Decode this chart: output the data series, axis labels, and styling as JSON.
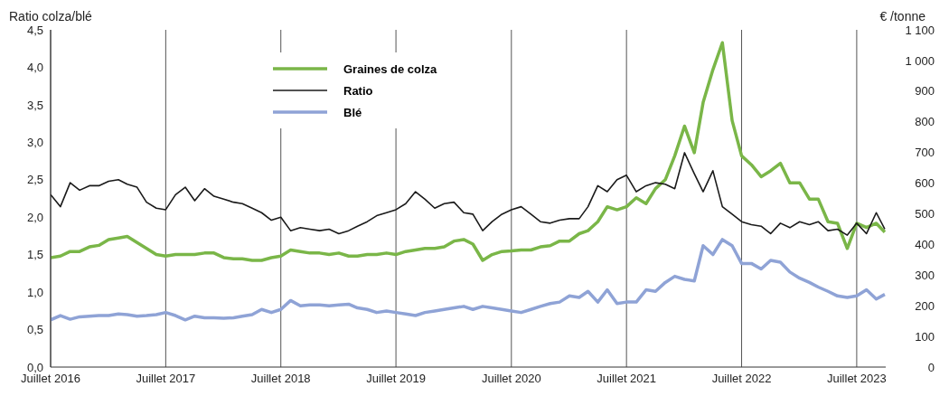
{
  "chart_data": {
    "type": "line",
    "ylabel": "Ratio colza/blé",
    "y2label": "€ /tonne",
    "x": [
      "2016-07",
      "2016-08",
      "2016-09",
      "2016-10",
      "2016-11",
      "2016-12",
      "2017-01",
      "2017-02",
      "2017-03",
      "2017-04",
      "2017-05",
      "2017-06",
      "2017-07",
      "2017-08",
      "2017-09",
      "2017-10",
      "2017-11",
      "2017-12",
      "2018-01",
      "2018-02",
      "2018-03",
      "2018-04",
      "2018-05",
      "2018-06",
      "2018-07",
      "2018-08",
      "2018-09",
      "2018-10",
      "2018-11",
      "2018-12",
      "2019-01",
      "2019-02",
      "2019-03",
      "2019-04",
      "2019-05",
      "2019-06",
      "2019-07",
      "2019-08",
      "2019-09",
      "2019-10",
      "2019-11",
      "2019-12",
      "2020-01",
      "2020-02",
      "2020-03",
      "2020-04",
      "2020-05",
      "2020-06",
      "2020-07",
      "2020-08",
      "2020-09",
      "2020-10",
      "2020-11",
      "2020-12",
      "2021-01",
      "2021-02",
      "2021-03",
      "2021-04",
      "2021-05",
      "2021-06",
      "2021-07",
      "2021-08",
      "2021-09",
      "2021-10",
      "2021-11",
      "2021-12",
      "2022-01",
      "2022-02",
      "2022-03",
      "2022-04",
      "2022-05",
      "2022-06",
      "2022-07",
      "2022-08",
      "2022-09",
      "2022-10",
      "2022-11",
      "2022-12",
      "2023-01",
      "2023-02",
      "2023-03",
      "2023-04",
      "2023-05",
      "2023-06",
      "2023-07",
      "2023-08",
      "2023-09",
      "2023-09-28"
    ],
    "series": [
      {
        "name": "Graines de colza",
        "color": "#7ab648",
        "axis": "y2",
        "values": [
          357,
          362,
          377,
          377,
          392,
          397,
          416,
          421,
          426,
          406,
          387,
          367,
          362,
          367,
          367,
          367,
          372,
          372,
          357,
          353,
          353,
          348,
          348,
          357,
          362,
          382,
          377,
          372,
          372,
          367,
          372,
          362,
          362,
          367,
          367,
          372,
          367,
          377,
          382,
          387,
          387,
          392,
          411,
          416,
          401,
          348,
          367,
          377,
          379,
          382,
          382,
          392,
          396,
          411,
          411,
          435,
          445,
          474,
          523,
          513,
          523,
          552,
          533,
          582,
          611,
          689,
          786,
          699,
          863,
          970,
          1058,
          804,
          689,
          660,
          621,
          640,
          665,
          601,
          601,
          548,
          548,
          474,
          469,
          387,
          469,
          455,
          469,
          440
        ]
      },
      {
        "name": "Ratio",
        "color": "#1a1a1a",
        "values": [
          2.3,
          2.14,
          2.46,
          2.36,
          2.42,
          2.42,
          2.48,
          2.5,
          2.44,
          2.4,
          2.2,
          2.12,
          2.1,
          2.3,
          2.4,
          2.22,
          2.38,
          2.28,
          2.24,
          2.2,
          2.18,
          2.12,
          2.06,
          1.96,
          2.0,
          1.82,
          1.86,
          1.84,
          1.82,
          1.84,
          1.78,
          1.82,
          1.88,
          1.94,
          2.02,
          2.06,
          2.1,
          2.18,
          2.34,
          2.24,
          2.12,
          2.18,
          2.2,
          2.06,
          2.04,
          1.82,
          1.94,
          2.04,
          2.1,
          2.14,
          2.04,
          1.94,
          1.92,
          1.96,
          1.98,
          1.98,
          2.14,
          2.42,
          2.34,
          2.5,
          2.56,
          2.34,
          2.42,
          2.46,
          2.44,
          2.38,
          2.86,
          2.58,
          2.34,
          2.62,
          2.14,
          2.04,
          1.94,
          1.9,
          1.88,
          1.78,
          1.92,
          1.86,
          1.94,
          1.9,
          1.94,
          1.82,
          1.84,
          1.76,
          1.92,
          1.78,
          2.06,
          1.84
        ]
      },
      {
        "name": "Blé",
        "color": "#8fa3d6",
        "axis": "y2",
        "values": [
          154,
          168,
          156,
          164,
          166,
          168,
          168,
          173,
          171,
          166,
          168,
          171,
          178,
          168,
          154,
          166,
          161,
          161,
          159,
          161,
          166,
          171,
          188,
          178,
          188,
          217,
          200,
          203,
          203,
          200,
          203,
          205,
          193,
          188,
          178,
          183,
          178,
          173,
          168,
          178,
          183,
          188,
          193,
          198,
          188,
          198,
          193,
          188,
          183,
          178,
          188,
          198,
          207,
          212,
          232,
          227,
          247,
          212,
          252,
          207,
          212,
          212,
          252,
          247,
          276,
          296,
          286,
          281,
          396,
          367,
          416,
          396,
          338,
          338,
          320,
          348,
          342,
          310,
          290,
          276,
          261,
          247,
          232,
          227,
          232,
          252,
          222,
          237
        ]
      }
    ],
    "xlim": [
      "2016-07",
      "2023-10"
    ],
    "xticks": [
      {
        "value": "2016-07",
        "label": "Juillet 2016"
      },
      {
        "value": "2017-07",
        "label": "Juillet 2017"
      },
      {
        "value": "2018-07",
        "label": "Juillet 2018"
      },
      {
        "value": "2019-07",
        "label": "Juillet 2019"
      },
      {
        "value": "2020-07",
        "label": "Juillet 2020"
      },
      {
        "value": "2021-07",
        "label": "Juillet 2021"
      },
      {
        "value": "2022-07",
        "label": "Juillet 2022"
      },
      {
        "value": "2023-07",
        "label": "Juillet 2023"
      }
    ],
    "ylim": [
      0,
      4.5
    ],
    "yticks": [
      {
        "value": 0,
        "label": "0,0"
      },
      {
        "value": 0.5,
        "label": "0,5"
      },
      {
        "value": 1,
        "label": "1,0"
      },
      {
        "value": 1.5,
        "label": "1,5"
      },
      {
        "value": 2,
        "label": "2,0"
      },
      {
        "value": 2.5,
        "label": "2,5"
      },
      {
        "value": 3,
        "label": "3,0"
      },
      {
        "value": 3.5,
        "label": "3,5"
      },
      {
        "value": 4,
        "label": "4,0"
      },
      {
        "value": 4.5,
        "label": "4,5"
      }
    ],
    "y2lim": [
      0,
      1100
    ],
    "y2ticks": [
      0,
      100,
      200,
      300,
      400,
      500,
      600,
      700,
      800,
      900,
      {
        "value": 1000,
        "label": "1 000"
      },
      {
        "value": 1100,
        "label": "1 100"
      }
    ],
    "grid": true,
    "legend": "top",
    "line_style": "solid",
    "marker": "none"
  }
}
